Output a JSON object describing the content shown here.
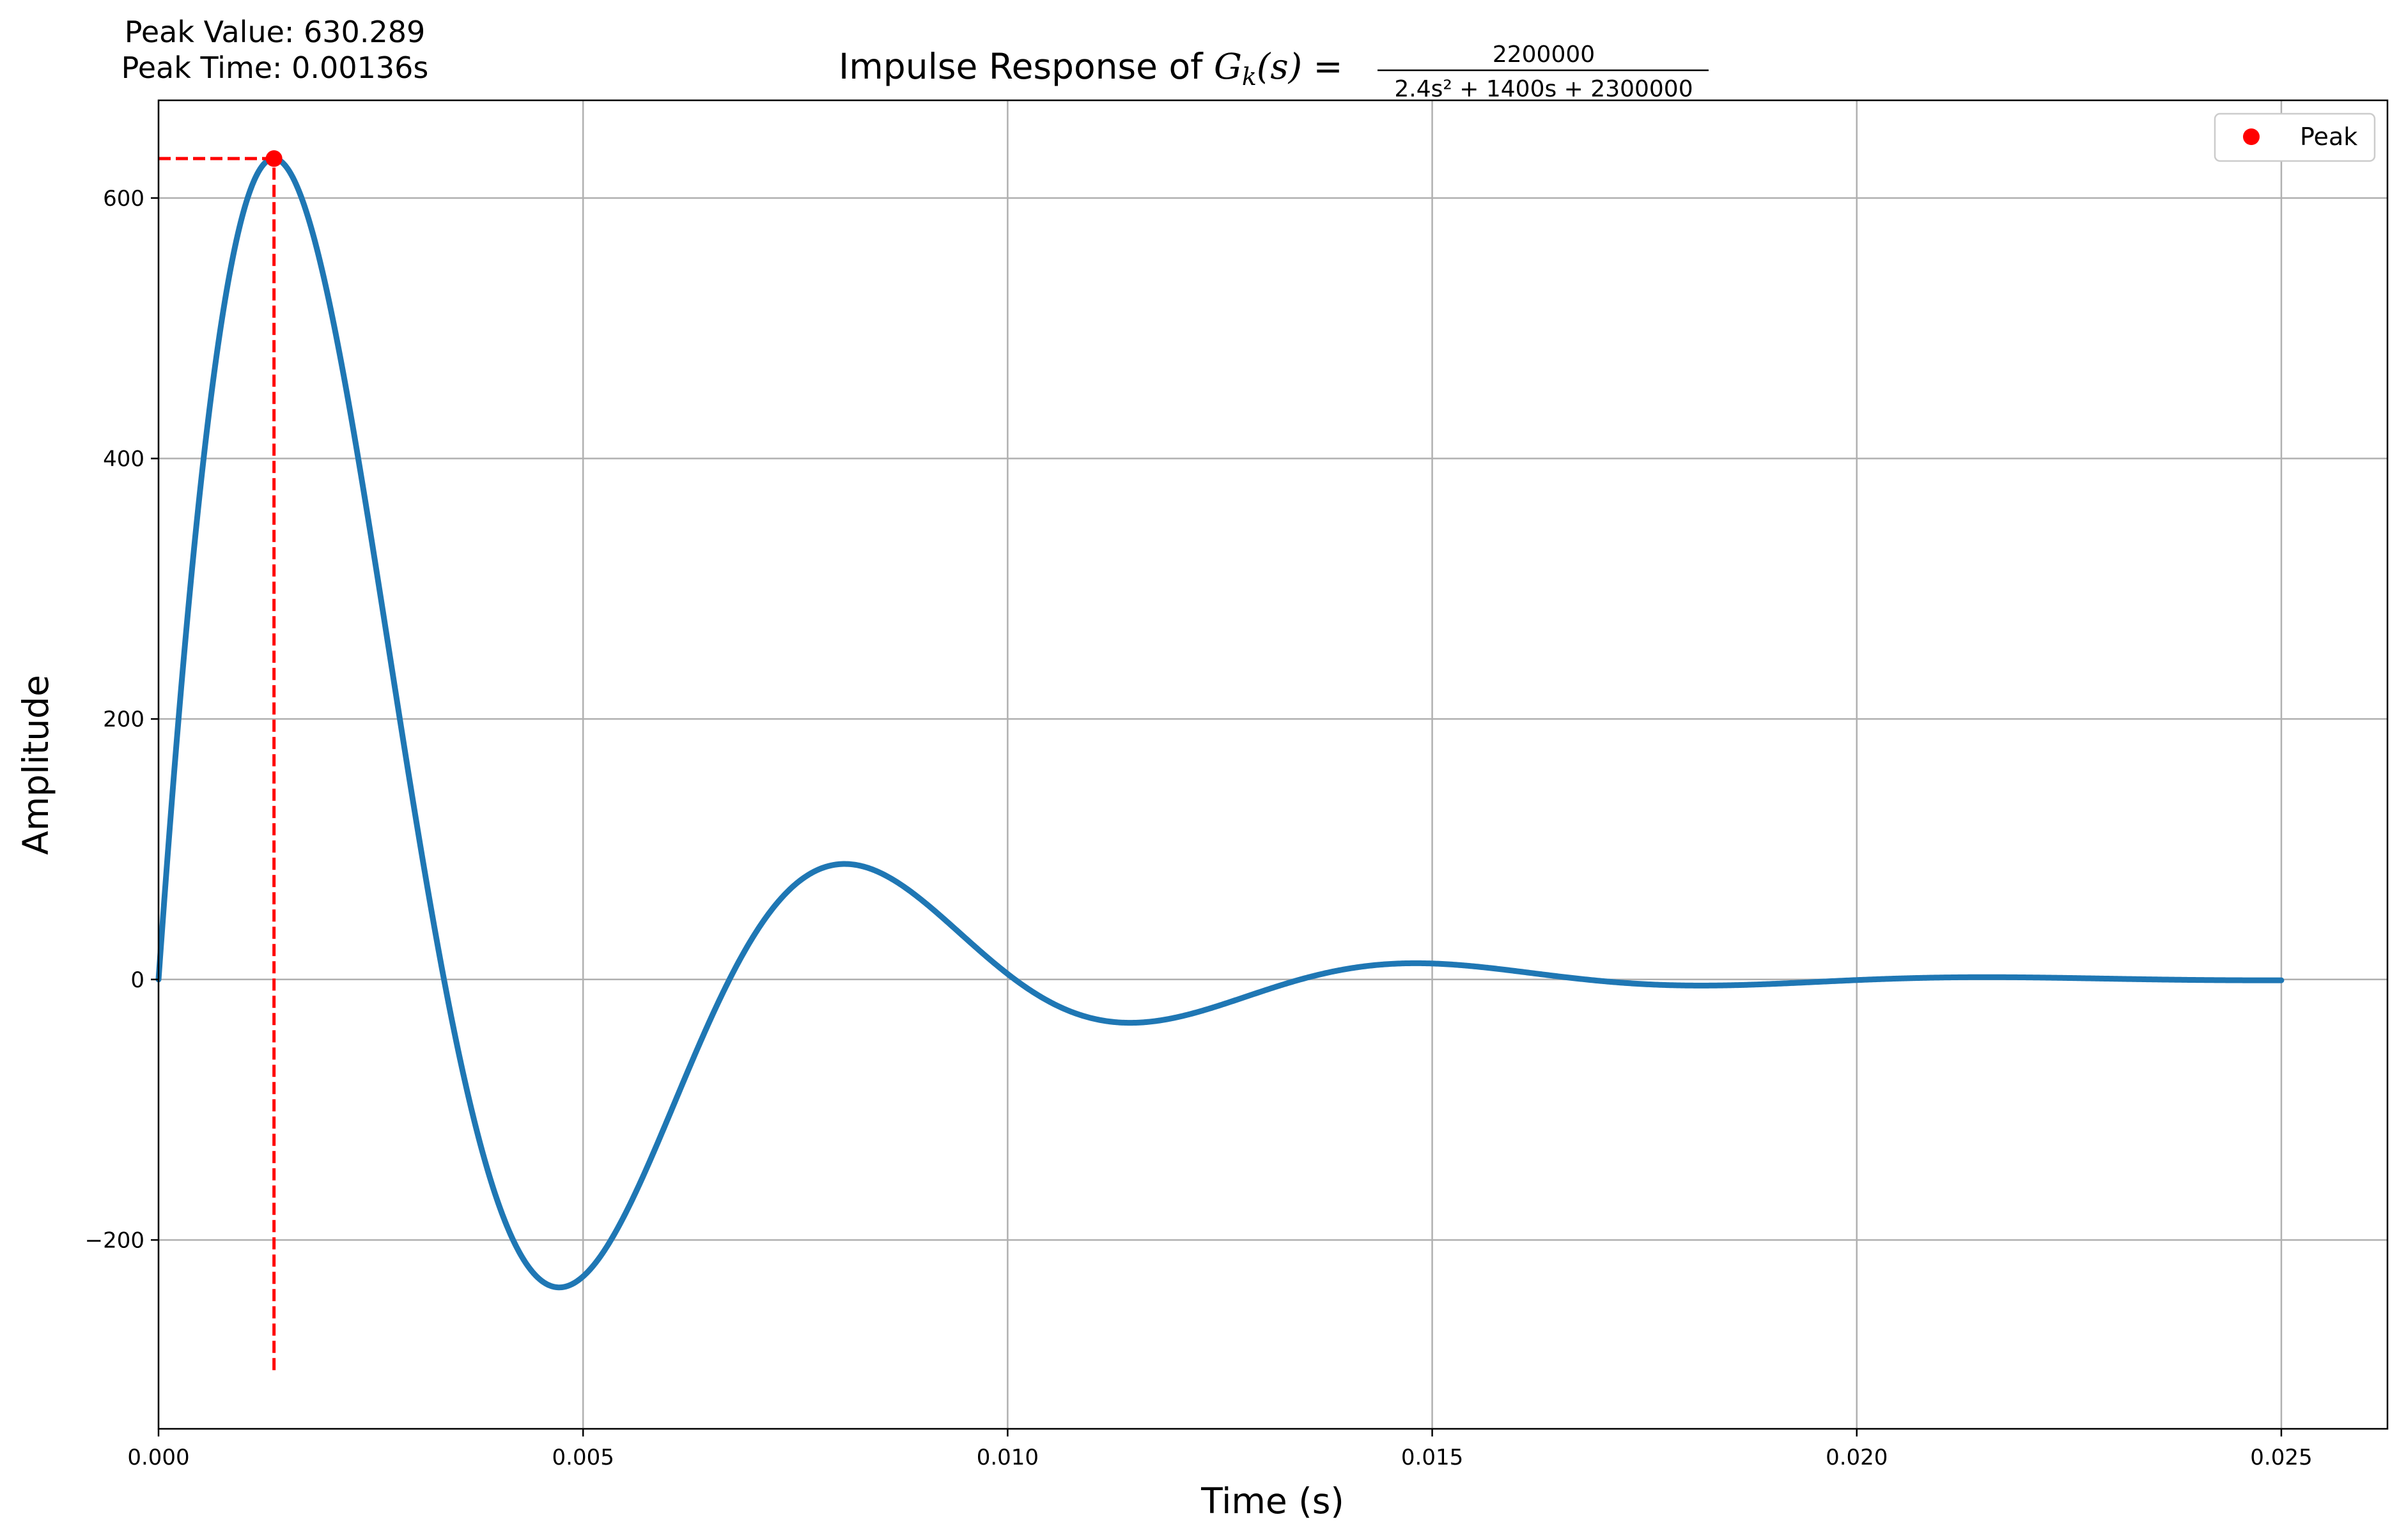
{
  "chart_data": {
    "type": "line",
    "title_prefix": "Impulse Response of ",
    "title_lhs_symbol": "G",
    "title_lhs_subscript": "k",
    "title_lhs_arg": "(s)",
    "title_equals": " = ",
    "title_numerator": "2200000",
    "title_denominator": "2.4s² + 1400s + 2300000",
    "xlabel": "Time (s)",
    "ylabel": "Amplitude",
    "xlim": [
      0,
      0.02625
    ],
    "ylim": [
      -345,
      675
    ],
    "xticks": [
      0.0,
      0.005,
      0.01,
      0.015,
      0.02,
      0.025
    ],
    "xtick_labels": [
      "0.000",
      "0.005",
      "0.010",
      "0.015",
      "0.020",
      "0.025"
    ],
    "yticks": [
      -200,
      0,
      200,
      400,
      600
    ],
    "ytick_labels": [
      "−200",
      "0",
      "200",
      "400",
      "600"
    ],
    "grid": true,
    "legend_position": "top-right",
    "series": [
      {
        "name": "",
        "color": "#1f77b4",
        "function": {
          "kind": "second_order_impulse",
          "numerator": 2200000,
          "denominator": [
            2.4,
            1400,
            2300000
          ],
          "t_start": 0,
          "t_end": 0.025
        }
      }
    ],
    "peak": {
      "legend_label": "Peak",
      "time": 0.00136,
      "value": 630.289,
      "color": "#ff0000",
      "vline_bottom": -300
    },
    "annotation": {
      "line1": "Peak Value: 630.289",
      "line2": "Peak Time: 0.00136s"
    }
  }
}
